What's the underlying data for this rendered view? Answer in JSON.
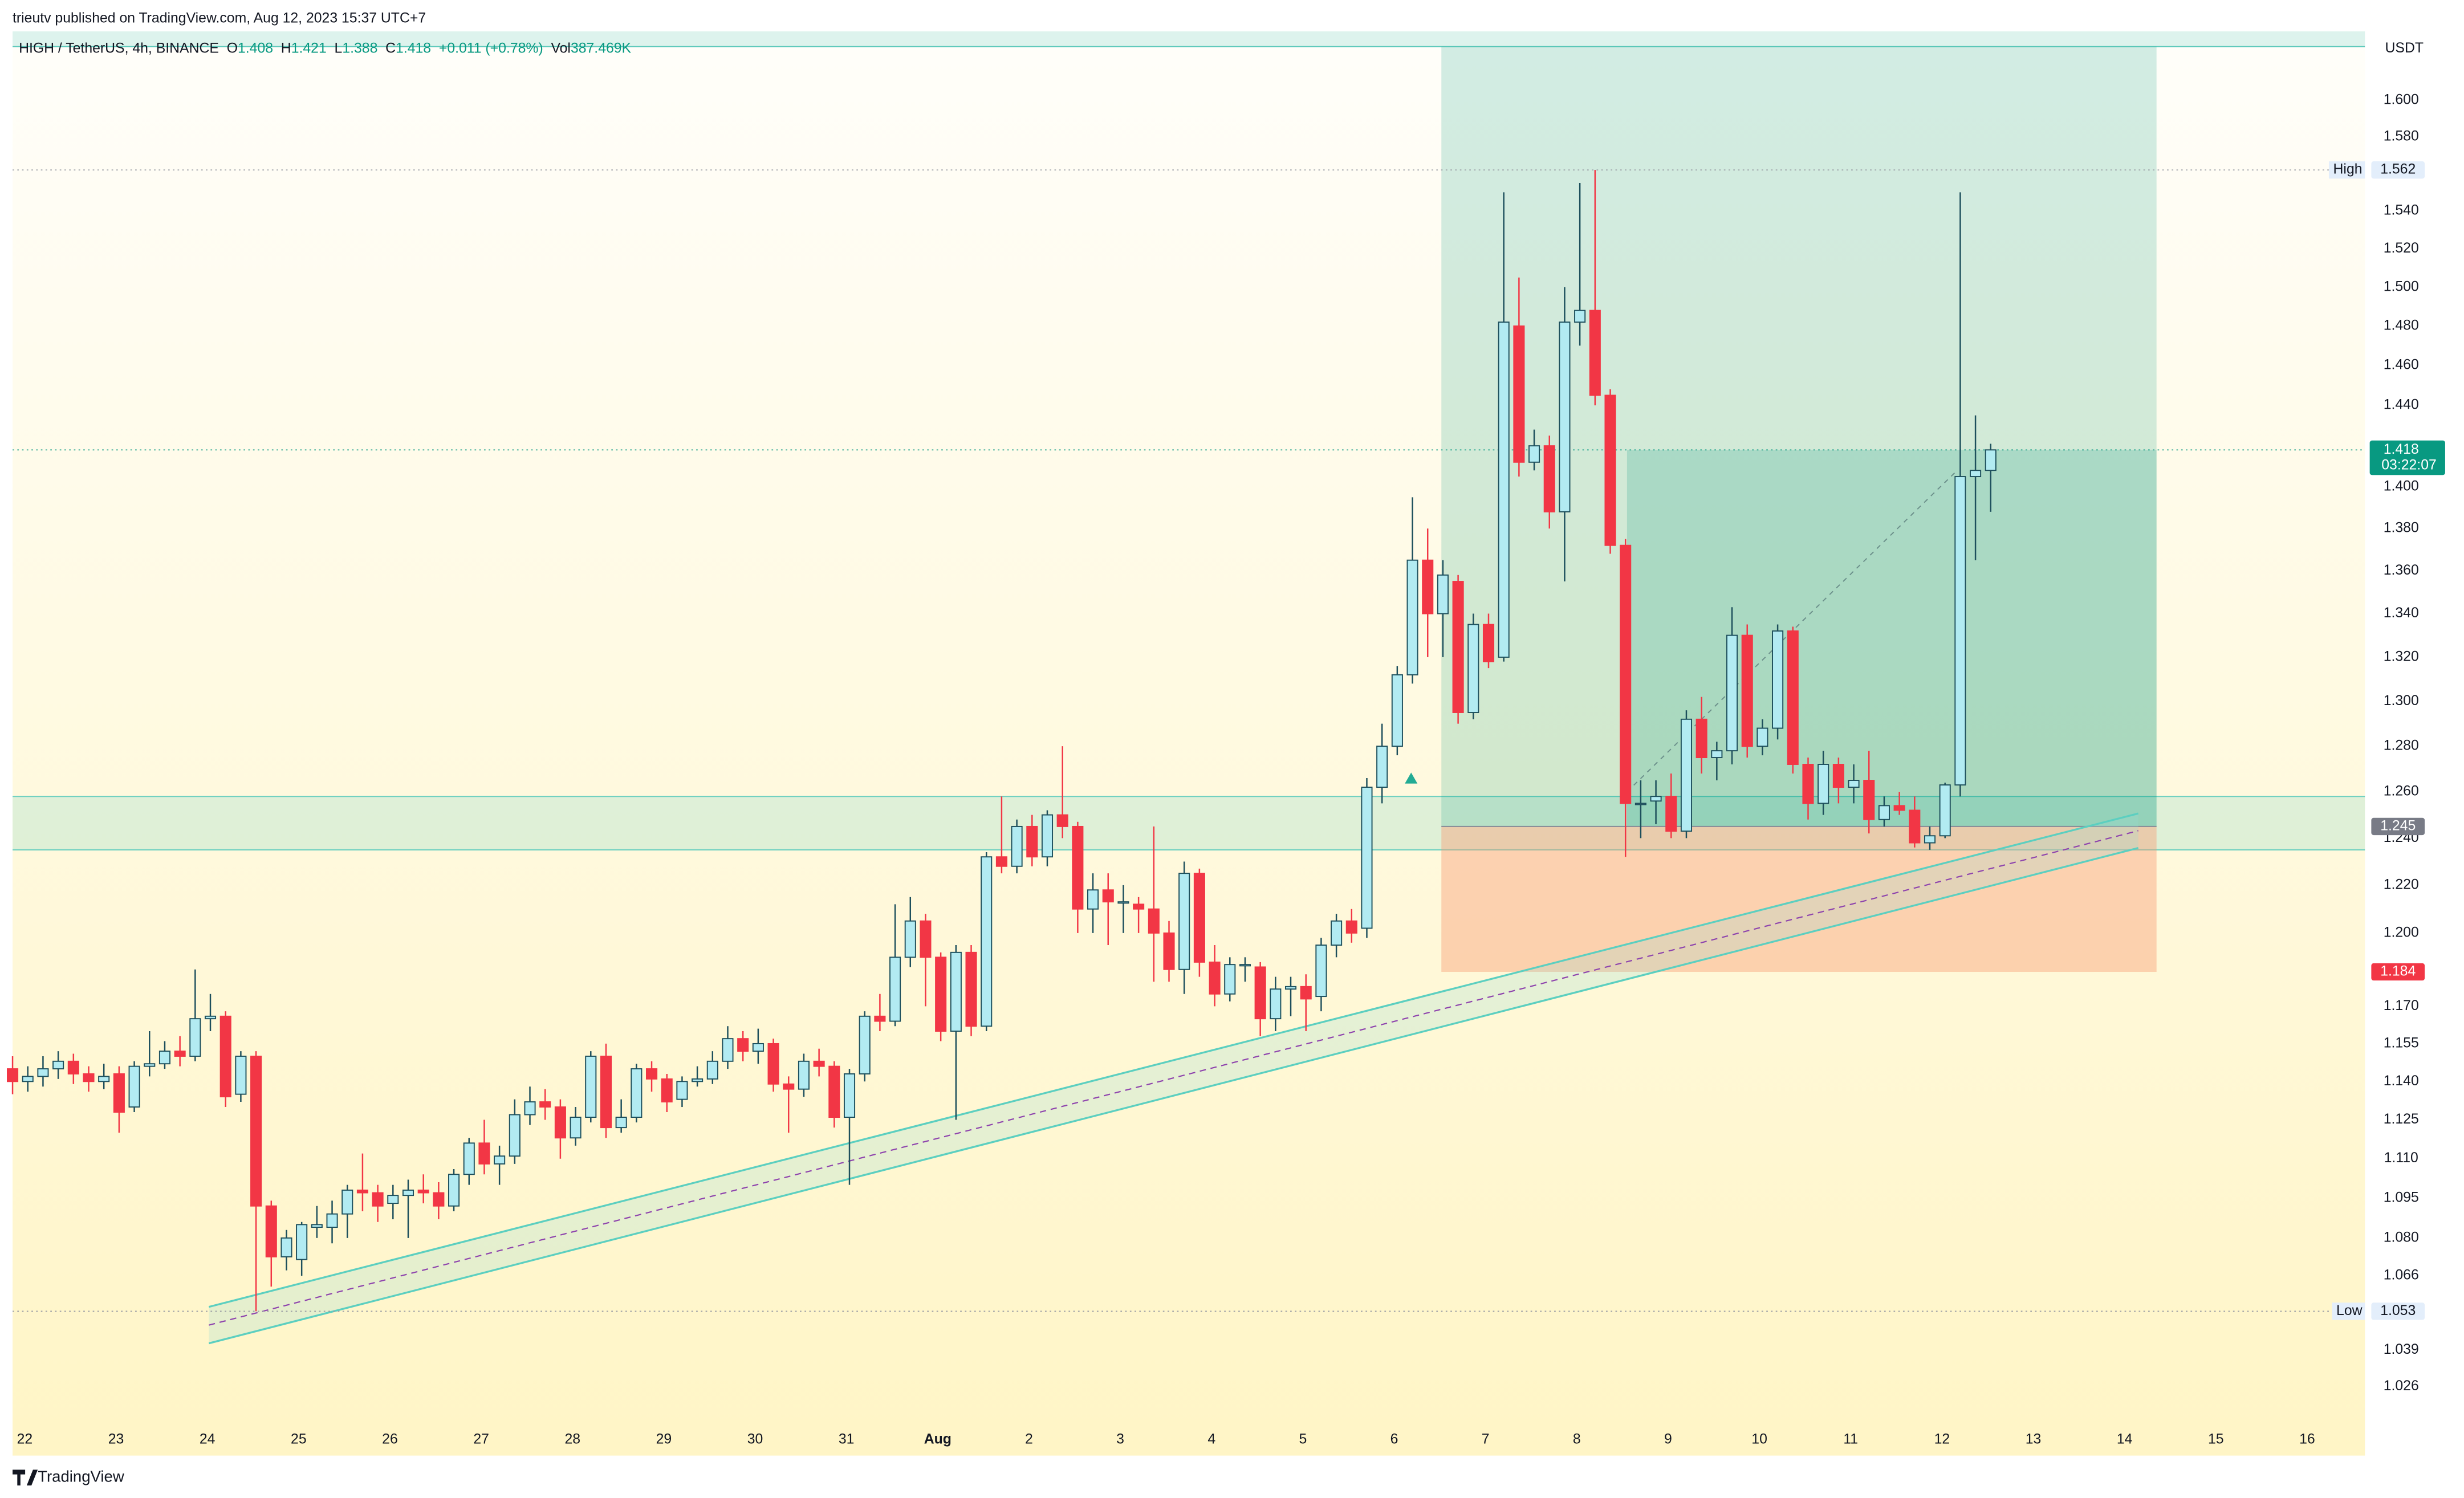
{
  "header": {
    "byline": "trieutv published on TradingView.com, Aug 12, 2023 15:37 UTC+7",
    "brand": "TradingView"
  },
  "chart_data": {
    "type": "candlestick",
    "title": "HIGH / TetherUS, 4h, BINANCE",
    "ohlc_labels": [
      "O",
      "H",
      "L",
      "C"
    ],
    "change": "+0.011 (+0.78%)",
    "volume_label": "Vol",
    "volume": "387.469K",
    "currency": "USDT",
    "open": [
      1.145,
      1.14,
      1.142,
      1.145,
      1.148,
      1.143,
      1.14,
      1.143,
      1.13,
      1.146,
      1.147,
      1.152,
      1.15,
      1.165,
      1.166,
      1.135,
      1.15,
      1.092,
      1.073,
      1.072,
      1.084,
      1.084,
      1.089,
      1.098,
      1.097,
      1.093,
      1.096,
      1.098,
      1.097,
      1.092,
      1.104,
      1.116,
      1.108,
      1.111,
      1.127,
      1.132,
      1.13,
      1.118,
      1.126,
      1.15,
      1.122,
      1.126,
      1.145,
      1.141,
      1.133,
      1.14,
      1.141,
      1.148,
      1.157,
      1.152,
      1.155,
      1.139,
      1.137,
      1.148,
      1.146,
      1.126,
      1.143,
      1.166,
      1.164,
      1.19,
      1.205,
      1.19,
      1.16,
      1.192,
      1.162,
      1.232,
      1.228,
      1.245,
      1.232,
      1.25,
      1.245,
      1.21,
      1.218,
      1.213,
      1.212,
      1.21,
      1.2,
      1.185,
      1.225,
      1.188,
      1.175,
      1.187,
      1.186,
      1.165,
      1.177,
      1.178,
      1.174,
      1.195,
      1.205,
      1.202,
      1.262,
      1.28,
      1.312,
      1.365,
      1.34,
      1.355,
      1.295,
      1.335,
      1.32,
      1.48,
      1.412,
      1.42,
      1.388,
      1.482,
      1.488,
      1.445,
      1.372,
      1.255,
      1.256,
      1.258,
      1.243,
      1.292,
      1.275,
      1.278,
      1.33,
      1.28,
      1.288,
      1.332,
      1.272,
      1.255,
      1.272,
      1.262,
      1.265,
      1.248,
      1.254,
      1.252,
      1.238,
      1.241,
      1.263,
      1.405,
      1.408
    ],
    "high": [
      1.15,
      1.146,
      1.15,
      1.152,
      1.151,
      1.146,
      1.147,
      1.146,
      1.148,
      1.16,
      1.156,
      1.158,
      1.185,
      1.175,
      1.168,
      1.152,
      1.152,
      1.094,
      1.083,
      1.086,
      1.092,
      1.094,
      1.1,
      1.112,
      1.1,
      1.1,
      1.102,
      1.104,
      1.101,
      1.106,
      1.118,
      1.125,
      1.115,
      1.133,
      1.138,
      1.137,
      1.133,
      1.13,
      1.152,
      1.155,
      1.133,
      1.147,
      1.148,
      1.143,
      1.142,
      1.146,
      1.152,
      1.162,
      1.16,
      1.161,
      1.157,
      1.142,
      1.151,
      1.153,
      1.148,
      1.145,
      1.168,
      1.175,
      1.212,
      1.215,
      1.208,
      1.192,
      1.195,
      1.195,
      1.234,
      1.258,
      1.248,
      1.25,
      1.252,
      1.28,
      1.247,
      1.225,
      1.225,
      1.22,
      1.215,
      1.245,
      1.205,
      1.23,
      1.227,
      1.195,
      1.19,
      1.19,
      1.188,
      1.182,
      1.182,
      1.183,
      1.198,
      1.208,
      1.21,
      1.266,
      1.29,
      1.316,
      1.395,
      1.38,
      1.365,
      1.358,
      1.34,
      1.34,
      1.55,
      1.505,
      1.428,
      1.425,
      1.5,
      1.555,
      1.562,
      1.448,
      1.375,
      1.265,
      1.265,
      1.268,
      1.296,
      1.302,
      1.282,
      1.343,
      1.335,
      1.292,
      1.335,
      1.334,
      1.275,
      1.278,
      1.275,
      1.272,
      1.278,
      1.258,
      1.26,
      1.258,
      1.245,
      1.264,
      1.55,
      1.435,
      1.421
    ],
    "low": [
      1.135,
      1.136,
      1.138,
      1.141,
      1.139,
      1.136,
      1.137,
      1.12,
      1.128,
      1.142,
      1.145,
      1.146,
      1.148,
      1.16,
      1.13,
      1.132,
      1.053,
      1.062,
      1.068,
      1.066,
      1.08,
      1.078,
      1.08,
      1.09,
      1.086,
      1.087,
      1.08,
      1.093,
      1.087,
      1.09,
      1.1,
      1.104,
      1.1,
      1.108,
      1.123,
      1.125,
      1.11,
      1.115,
      1.124,
      1.118,
      1.12,
      1.124,
      1.136,
      1.128,
      1.13,
      1.138,
      1.139,
      1.145,
      1.148,
      1.147,
      1.136,
      1.12,
      1.134,
      1.142,
      1.122,
      1.1,
      1.14,
      1.16,
      1.162,
      1.186,
      1.17,
      1.156,
      1.125,
      1.158,
      1.16,
      1.225,
      1.225,
      1.228,
      1.228,
      1.24,
      1.2,
      1.2,
      1.195,
      1.2,
      1.2,
      1.18,
      1.18,
      1.175,
      1.182,
      1.17,
      1.172,
      1.18,
      1.158,
      1.16,
      1.166,
      1.16,
      1.168,
      1.19,
      1.196,
      1.198,
      1.255,
      1.276,
      1.308,
      1.32,
      1.32,
      1.29,
      1.292,
      1.315,
      1.318,
      1.405,
      1.408,
      1.38,
      1.355,
      1.47,
      1.44,
      1.368,
      1.232,
      1.24,
      1.246,
      1.24,
      1.24,
      1.268,
      1.265,
      1.272,
      1.275,
      1.276,
      1.283,
      1.268,
      1.248,
      1.25,
      1.255,
      1.255,
      1.242,
      1.245,
      1.25,
      1.236,
      1.235,
      1.24,
      1.258,
      1.365,
      1.388
    ],
    "close": [
      1.14,
      1.142,
      1.145,
      1.148,
      1.143,
      1.14,
      1.142,
      1.128,
      1.146,
      1.147,
      1.152,
      1.15,
      1.165,
      1.166,
      1.134,
      1.15,
      1.092,
      1.073,
      1.08,
      1.085,
      1.085,
      1.089,
      1.098,
      1.097,
      1.092,
      1.096,
      1.098,
      1.097,
      1.092,
      1.104,
      1.116,
      1.108,
      1.111,
      1.127,
      1.132,
      1.13,
      1.118,
      1.126,
      1.15,
      1.122,
      1.126,
      1.145,
      1.141,
      1.132,
      1.14,
      1.141,
      1.148,
      1.157,
      1.152,
      1.155,
      1.139,
      1.137,
      1.148,
      1.146,
      1.126,
      1.143,
      1.166,
      1.164,
      1.19,
      1.205,
      1.19,
      1.16,
      1.192,
      1.162,
      1.232,
      1.228,
      1.245,
      1.232,
      1.25,
      1.245,
      1.21,
      1.218,
      1.213,
      1.213,
      1.21,
      1.2,
      1.185,
      1.225,
      1.188,
      1.175,
      1.187,
      1.187,
      1.165,
      1.177,
      1.178,
      1.173,
      1.195,
      1.205,
      1.2,
      1.262,
      1.28,
      1.312,
      1.365,
      1.34,
      1.358,
      1.295,
      1.335,
      1.318,
      1.482,
      1.412,
      1.42,
      1.388,
      1.482,
      1.488,
      1.445,
      1.372,
      1.255,
      1.255,
      1.258,
      1.243,
      1.292,
      1.275,
      1.278,
      1.33,
      1.28,
      1.288,
      1.332,
      1.272,
      1.255,
      1.272,
      1.262,
      1.265,
      1.248,
      1.254,
      1.252,
      1.238,
      1.241,
      1.263,
      1.405,
      1.408,
      1.418
    ],
    "up_color": "#b2ebf2",
    "up_border": "#1d4f5c",
    "down_color": "#f23645",
    "log": true,
    "grid": false,
    "xlim": [
      0,
      154.6
    ],
    "ylim": [
      1.0127,
      1.6386
    ],
    "xticks": [
      {
        "value": 0.8,
        "label": "22"
      },
      {
        "value": 6.8,
        "label": "23"
      },
      {
        "value": 12.8,
        "label": "24"
      },
      {
        "value": 18.8,
        "label": "25"
      },
      {
        "value": 24.8,
        "label": "26"
      },
      {
        "value": 30.8,
        "label": "27"
      },
      {
        "value": 36.8,
        "label": "28"
      },
      {
        "value": 42.8,
        "label": "29"
      },
      {
        "value": 48.8,
        "label": "30"
      },
      {
        "value": 54.8,
        "label": "31"
      },
      {
        "value": 60.8,
        "label": "Aug"
      },
      {
        "value": 66.8,
        "label": "2"
      },
      {
        "value": 72.8,
        "label": "3"
      },
      {
        "value": 78.8,
        "label": "4"
      },
      {
        "value": 84.8,
        "label": "5"
      },
      {
        "value": 90.8,
        "label": "6"
      },
      {
        "value": 96.8,
        "label": "7"
      },
      {
        "value": 102.8,
        "label": "8"
      },
      {
        "value": 108.8,
        "label": "9"
      },
      {
        "value": 114.8,
        "label": "10"
      },
      {
        "value": 120.8,
        "label": "11"
      },
      {
        "value": 126.8,
        "label": "12"
      },
      {
        "value": 132.8,
        "label": "13"
      },
      {
        "value": 138.8,
        "label": "14"
      },
      {
        "value": 144.8,
        "label": "15"
      },
      {
        "value": 150.8,
        "label": "16"
      }
    ],
    "yticks": [
      1.026,
      1.039,
      1.066,
      {
        "value": 1.08,
        "label": "1.080"
      },
      1.095,
      {
        "value": 1.11,
        "label": "1.110"
      },
      1.125,
      {
        "value": 1.14,
        "label": "1.140"
      },
      1.155,
      {
        "value": 1.17,
        "label": "1.170"
      },
      {
        "value": 1.2,
        "label": "1.200"
      },
      {
        "value": 1.22,
        "label": "1.220"
      },
      {
        "value": 1.24,
        "label": "1.240"
      },
      {
        "value": 1.26,
        "label": "1.260"
      },
      {
        "value": 1.28,
        "label": "1.280"
      },
      {
        "value": 1.3,
        "label": "1.300"
      },
      {
        "value": 1.32,
        "label": "1.320"
      },
      {
        "value": 1.34,
        "label": "1.340"
      },
      {
        "value": 1.36,
        "label": "1.360"
      },
      {
        "value": 1.38,
        "label": "1.380"
      },
      {
        "value": 1.4,
        "label": "1.400"
      },
      {
        "value": 1.44,
        "label": "1.440"
      },
      {
        "value": 1.46,
        "label": "1.460"
      },
      {
        "value": 1.48,
        "label": "1.480"
      },
      {
        "value": 1.5,
        "label": "1.500"
      },
      {
        "value": 1.52,
        "label": "1.520"
      },
      {
        "value": 1.54,
        "label": "1.540"
      },
      {
        "value": 1.58,
        "label": "1.580"
      },
      {
        "value": 1.6,
        "label": "1.600"
      }
    ],
    "high_label": "High",
    "low_label": "Low",
    "countdown": "03:22:07",
    "position": {
      "start": 93.9,
      "end": 140.9,
      "fill_start": 106.1,
      "entry": 1.245,
      "stop": 1.184,
      "target": 1.63
    },
    "zone": [
      1.235,
      1.258
    ],
    "channel": {
      "start": 12.9,
      "end": 139.7,
      "upper": [
        1.0546,
        1.2506
      ],
      "lower": [
        1.0414,
        1.2358
      ]
    },
    "trend": {
      "start": 106.1,
      "end": 127.8,
      "values": [
        1.26,
        1.408
      ]
    }
  }
}
